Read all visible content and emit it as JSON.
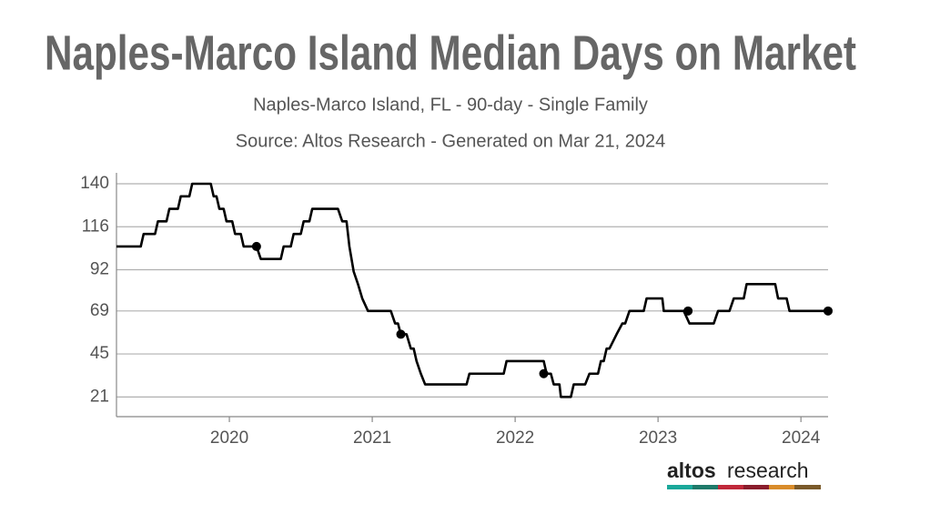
{
  "chart_data": {
    "type": "line",
    "title": "Naples-Marco Island Median Days on Market",
    "subtitle": "Naples-Marco Island, FL - 90-day - Single Family",
    "source": "Source: Altos Research - Generated on Mar 21, 2024",
    "xlim": [
      2019.21,
      2024.19
    ],
    "xticks": [
      2020,
      2021,
      2022,
      2023,
      2024
    ],
    "ylim": [
      10,
      140
    ],
    "yticks": [
      21,
      45,
      69,
      92,
      116,
      140
    ],
    "grid": true,
    "series": [
      {
        "color": "#000000",
        "style": "line",
        "x": [
          2019.21,
          2019.38,
          2019.4,
          2019.48,
          2019.5,
          2019.56,
          2019.58,
          2019.64,
          2019.66,
          2019.72,
          2019.74,
          2019.87,
          2019.89,
          2019.91,
          2019.93,
          2019.96,
          2019.98,
          2020.02,
          2020.04,
          2020.08,
          2020.1,
          2020.19,
          2020.22,
          2020.36,
          2020.38,
          2020.43,
          2020.45,
          2020.5,
          2020.52,
          2020.56,
          2020.58,
          2020.76,
          2020.79,
          2020.82,
          2020.84,
          2020.87,
          2020.9,
          2020.93,
          2020.97,
          2021.13,
          2021.16,
          2021.18,
          2021.2,
          2021.24,
          2021.27,
          2021.29,
          2021.31,
          2021.34,
          2021.37,
          2021.66,
          2021.68,
          2021.92,
          2021.94,
          2022.2,
          2022.22,
          2022.25,
          2022.27,
          2022.31,
          2022.32,
          2022.39,
          2022.41,
          2022.49,
          2022.52,
          2022.58,
          2022.6,
          2022.62,
          2022.64,
          2022.66,
          2022.71,
          2022.75,
          2022.77,
          2022.8,
          2022.9,
          2022.92,
          2023.03,
          2023.04,
          2023.18,
          2023.22,
          2023.39,
          2023.42,
          2023.5,
          2023.53,
          2023.6,
          2023.62,
          2023.82,
          2023.84,
          2023.9,
          2023.92,
          2024.19
        ],
        "values": [
          105,
          105,
          112,
          112,
          119,
          119,
          126,
          126,
          133,
          133,
          140,
          140,
          133,
          133,
          126,
          126,
          119,
          119,
          112,
          112,
          105,
          105,
          98,
          98,
          105,
          105,
          112,
          112,
          119,
          119,
          126,
          126,
          119,
          119,
          105,
          91,
          84,
          76,
          69,
          69,
          62,
          62,
          56,
          56,
          48,
          48,
          41,
          34,
          28,
          28,
          34,
          34,
          41,
          41,
          34,
          34,
          28,
          28,
          21,
          21,
          28,
          28,
          34,
          34,
          41,
          41,
          48,
          48,
          56,
          62,
          62,
          69,
          69,
          76,
          76,
          69,
          69,
          62,
          62,
          69,
          69,
          76,
          76,
          84,
          84,
          76,
          76,
          69,
          69
        ]
      },
      {
        "color": "#000000",
        "style": "markers",
        "x": [
          2020.19,
          2021.2,
          2022.2,
          2023.21,
          2024.19
        ],
        "values": [
          105,
          56,
          34,
          69,
          69
        ]
      }
    ]
  },
  "logo": {
    "word1": "altos",
    "word2": "research"
  }
}
